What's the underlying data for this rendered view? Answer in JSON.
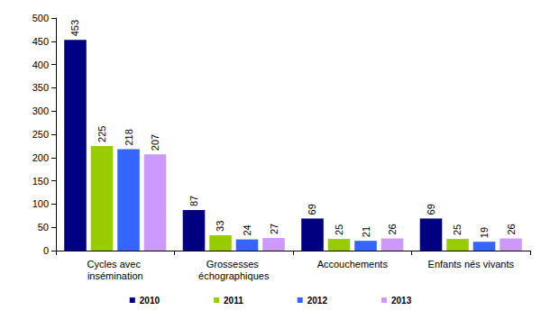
{
  "chart_data": {
    "type": "bar",
    "categories": [
      "Cycles avec insémination",
      "Grossesses échographiques",
      "Accouchements",
      "Enfants nés vivants"
    ],
    "series": [
      {
        "name": "2010",
        "color": "#000080",
        "values": [
          453,
          87,
          69,
          69
        ]
      },
      {
        "name": "2011",
        "color": "#99cc00",
        "values": [
          225,
          33,
          25,
          25
        ]
      },
      {
        "name": "2012",
        "color": "#3366ff",
        "values": [
          218,
          24,
          21,
          19
        ]
      },
      {
        "name": "2013",
        "color": "#cc99ff",
        "values": [
          207,
          27,
          26,
          26
        ]
      }
    ],
    "ylim": [
      0,
      500
    ],
    "yticks": [
      0,
      50,
      100,
      150,
      200,
      250,
      300,
      350,
      400,
      450,
      500
    ],
    "grid": false,
    "legend": "bottom",
    "data_labels": true
  }
}
